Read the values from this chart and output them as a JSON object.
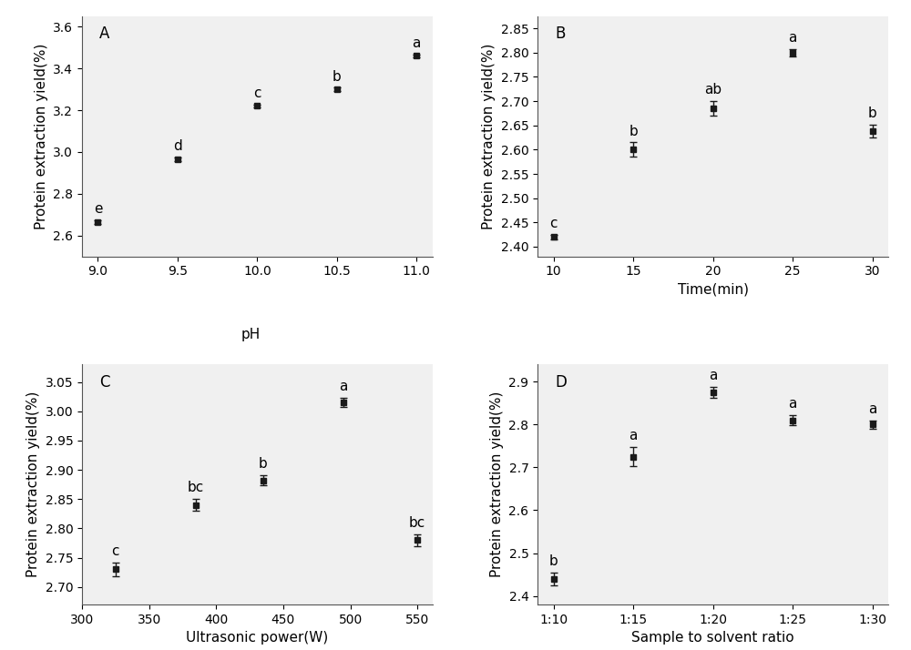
{
  "A": {
    "x": [
      9.0,
      9.5,
      10.0,
      10.5,
      11.0
    ],
    "y": [
      2.665,
      2.965,
      3.22,
      3.3,
      3.46
    ],
    "yerr": [
      0.008,
      0.008,
      0.008,
      0.008,
      0.008
    ],
    "labels": [
      "e",
      "d",
      "c",
      "b",
      "a"
    ],
    "xlabel": "",
    "ylabel": "Protein extraction yield(%)",
    "panel": "A",
    "ylim": [
      2.5,
      3.65
    ],
    "yticks": [
      2.6,
      2.8,
      3.0,
      3.2,
      3.4,
      3.6
    ],
    "xticks": [
      9.0,
      9.5,
      10.0,
      10.5,
      11.0
    ],
    "xticklabels": [
      "9.0",
      "9.5",
      "10.0",
      "10.5",
      "11.0"
    ]
  },
  "B": {
    "x": [
      10,
      15,
      20,
      25,
      30
    ],
    "y": [
      2.42,
      2.6,
      2.685,
      2.8,
      2.638
    ],
    "yerr": [
      0.005,
      0.015,
      0.015,
      0.008,
      0.013
    ],
    "labels": [
      "c",
      "b",
      "ab",
      "a",
      "b"
    ],
    "xlabel": "Time(min)",
    "ylabel": "Protein extraction yield(%)",
    "panel": "B",
    "ylim": [
      2.38,
      2.875
    ],
    "yticks": [
      2.4,
      2.45,
      2.5,
      2.55,
      2.6,
      2.65,
      2.7,
      2.75,
      2.8,
      2.85
    ],
    "xticks": [
      10,
      15,
      20,
      25,
      30
    ],
    "xticklabels": [
      "10",
      "15",
      "20",
      "25",
      "30"
    ]
  },
  "C": {
    "x": [
      325,
      385,
      435,
      495,
      550
    ],
    "y": [
      2.73,
      2.84,
      2.882,
      3.015,
      2.78
    ],
    "yerr": [
      0.012,
      0.01,
      0.009,
      0.008,
      0.01
    ],
    "labels": [
      "c",
      "bc",
      "b",
      "a",
      "bc"
    ],
    "xlabel": "Ultrasonic power(W)",
    "ylabel": "Protein extraction yield(%)",
    "panel": "C",
    "ylim": [
      2.67,
      3.08
    ],
    "yticks": [
      2.7,
      2.75,
      2.8,
      2.85,
      2.9,
      2.95,
      3.0,
      3.05
    ],
    "xticks": [
      300,
      350,
      400,
      450,
      500,
      550
    ],
    "xticklabels": [
      "300",
      "350",
      "400",
      "450",
      "500",
      "550"
    ]
  },
  "D": {
    "x": [
      1,
      2,
      3,
      4,
      5
    ],
    "y": [
      2.44,
      2.725,
      2.875,
      2.81,
      2.8
    ],
    "yerr": [
      0.015,
      0.022,
      0.012,
      0.012,
      0.01
    ],
    "labels": [
      "b",
      "a",
      "a",
      "a",
      "a"
    ],
    "xlabel": "Sample to solvent ratio",
    "ylabel": "Protein extraction yield(%)",
    "panel": "D",
    "ylim": [
      2.38,
      2.94
    ],
    "yticks": [
      2.4,
      2.5,
      2.6,
      2.7,
      2.8,
      2.9
    ],
    "xticklabels": [
      "1:10",
      "1:15",
      "1:20",
      "1:25",
      "1:30"
    ]
  },
  "marker": "s",
  "markersize": 5,
  "linewidth": 1.3,
  "color": "#1a1a1a",
  "capsize": 3,
  "elinewidth": 1.0,
  "label_fontsize": 11,
  "tick_fontsize": 10,
  "panel_label_fontsize": 12,
  "annot_fontsize": 11,
  "bg_color": "#ffffff",
  "plot_bg": "#f0f0f0",
  "ph_label": "pH"
}
